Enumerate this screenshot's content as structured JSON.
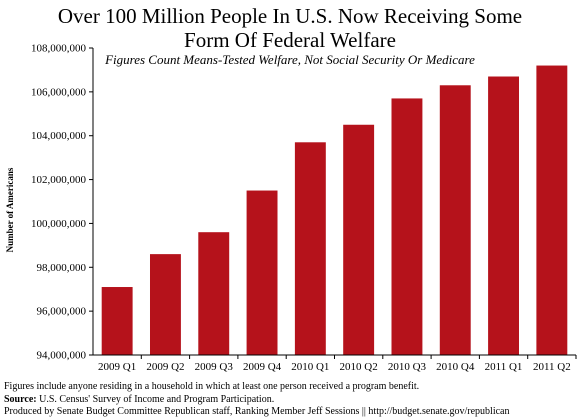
{
  "chart_data": {
    "type": "bar",
    "title_lines": [
      "Over 100 Million People In U.S. Now Receiving Some",
      "Form Of Federal Welfare"
    ],
    "subtitle": "Figures Count Means-Tested Welfare, Not Social Security Or Medicare",
    "xlabel": "",
    "ylabel": "Number of Americans",
    "categories": [
      "2009 Q1",
      "2009 Q2",
      "2009 Q3",
      "2009 Q4",
      "2010 Q1",
      "2010 Q2",
      "2010 Q3",
      "2010 Q4",
      "2011 Q1",
      "2011 Q2"
    ],
    "values": [
      97100000,
      98600000,
      99600000,
      101500000,
      103700000,
      104500000,
      105700000,
      106300000,
      106700000,
      107200000
    ],
    "ylim": [
      94000000,
      108000000
    ],
    "yticks": [
      94000000,
      96000000,
      98000000,
      100000000,
      102000000,
      104000000,
      106000000,
      108000000
    ],
    "ytick_labels": [
      "94,000,000",
      "96,000,000",
      "98,000,000",
      "100,000,000",
      "102,000,000",
      "104,000,000",
      "106,000,000",
      "108,000,000"
    ],
    "grid": false,
    "legend": "none",
    "bar_color": "#B5121B"
  },
  "notes": {
    "line1": "Figures include anyone residing in a household in which at least one person received a program benefit.",
    "source_label": "Source:",
    "source_text": " U.S. Census' Survey of Income and Program Participation.",
    "line3": "Produced by Senate Budget Committee Republican staff, Ranking Member Jeff Sessions || http://budget.senate.gov/republican"
  }
}
